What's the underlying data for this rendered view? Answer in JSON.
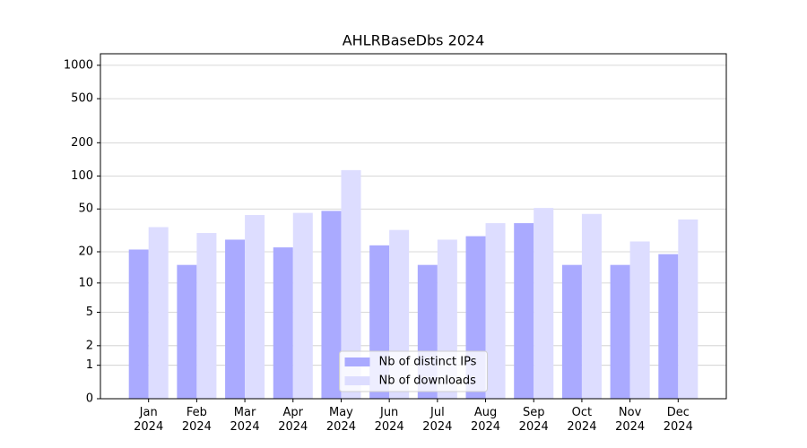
{
  "chart_data": {
    "type": "bar",
    "title": "AHLRBaseDbs 2024",
    "categories": [
      "Jan\n2024",
      "Feb\n2024",
      "Mar\n2024",
      "Apr\n2024",
      "May\n2024",
      "Jun\n2024",
      "Jul\n2024",
      "Aug\n2024",
      "Sep\n2024",
      "Oct\n2024",
      "Nov\n2024",
      "Dec\n2024"
    ],
    "series": [
      {
        "name": "Nb of distinct IPs",
        "color": "#aaaaff",
        "values": [
          21,
          15,
          26,
          22,
          48,
          23,
          15,
          28,
          37,
          15,
          15,
          19
        ]
      },
      {
        "name": "Nb of downloads",
        "color": "#ddddff",
        "values": [
          34,
          30,
          44,
          46,
          113,
          32,
          26,
          37,
          51,
          45,
          25,
          40
        ]
      }
    ],
    "yscale": "log1p",
    "ylim": [
      0,
      1270
    ],
    "yticks": [
      0,
      1,
      2,
      5,
      10,
      20,
      50,
      100,
      200,
      500,
      1000
    ],
    "grid": true,
    "legend": "lower center"
  }
}
